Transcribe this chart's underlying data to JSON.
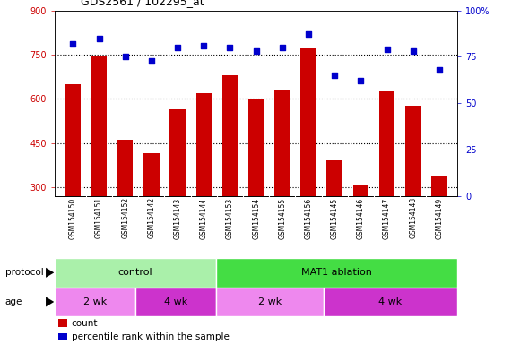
{
  "title": "GDS2561 / 102295_at",
  "samples": [
    "GSM154150",
    "GSM154151",
    "GSM154152",
    "GSM154142",
    "GSM154143",
    "GSM154144",
    "GSM154153",
    "GSM154154",
    "GSM154155",
    "GSM154156",
    "GSM154145",
    "GSM154146",
    "GSM154147",
    "GSM154148",
    "GSM154149"
  ],
  "bar_values": [
    650,
    745,
    460,
    415,
    565,
    620,
    680,
    600,
    630,
    770,
    390,
    305,
    625,
    575,
    340
  ],
  "dot_values": [
    82,
    85,
    75,
    73,
    80,
    81,
    80,
    78,
    80,
    87,
    65,
    62,
    79,
    78,
    68
  ],
  "bar_color": "#cc0000",
  "dot_color": "#0000cc",
  "ylim_left": [
    270,
    900
  ],
  "ylim_right": [
    0,
    100
  ],
  "yticks_left": [
    300,
    450,
    600,
    750,
    900
  ],
  "yticks_right": [
    0,
    25,
    50,
    75,
    100
  ],
  "hlines": [
    300,
    450,
    600,
    750
  ],
  "protocol_labels": [
    "control",
    "MAT1 ablation"
  ],
  "protocol_color_light": "#aaf0aa",
  "protocol_color_dark": "#44dd44",
  "age_labels": [
    "2 wk",
    "4 wk",
    "2 wk",
    "4 wk"
  ],
  "age_color_light": "#ee88ee",
  "age_color_dark": "#cc33cc",
  "bg_color": "#cccccc",
  "legend_count_label": "count",
  "legend_pct_label": "percentile rank within the sample"
}
